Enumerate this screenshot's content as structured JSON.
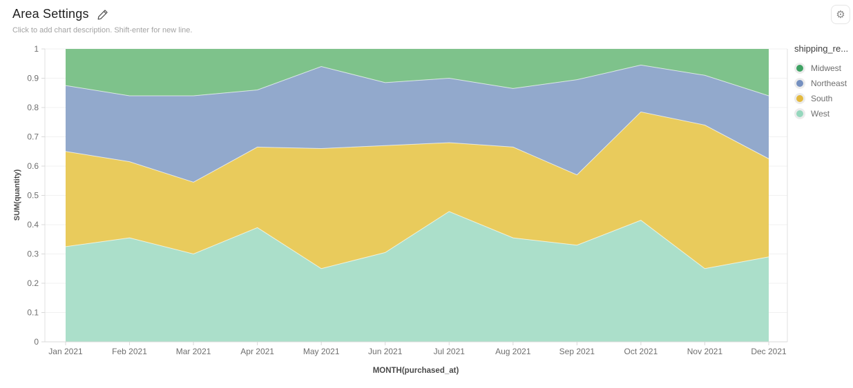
{
  "header": {
    "title": "Area Settings",
    "subtitle": "Click to add chart description. Shift-enter for new line."
  },
  "icons": {
    "settings": "⚙"
  },
  "legend": {
    "title": "shipping_re...",
    "items": [
      {
        "label": "Midwest",
        "color": "#3ea263"
      },
      {
        "label": "Northeast",
        "color": "#7590c0"
      },
      {
        "label": "South",
        "color": "#e3b93e"
      },
      {
        "label": "West",
        "color": "#95d7bd"
      }
    ]
  },
  "chart_data": {
    "type": "area",
    "stacked": true,
    "normalized": true,
    "title": "Area Settings",
    "xlabel": "MONTH(purchased_at)",
    "ylabel": "SUM(quantity)",
    "ylim": [
      0,
      1
    ],
    "yticks": [
      "0",
      "0.1",
      "0.2",
      "0.3",
      "0.4",
      "0.5",
      "0.6",
      "0.7",
      "0.8",
      "0.9",
      "1"
    ],
    "grid": "horizontal",
    "legend_position": "right",
    "stack_order": "West (bottom), South, Northeast, Midwest (top)",
    "x": [
      "Jan 2021",
      "Feb 2021",
      "Mar 2021",
      "Apr 2021",
      "May 2021",
      "Jun 2021",
      "Jul 2021",
      "Aug 2021",
      "Sep 2021",
      "Oct 2021",
      "Nov 2021",
      "Dec 2021"
    ],
    "series": [
      {
        "name": "West",
        "fill": "#abdfca",
        "legend_color": "#95d7bd",
        "values": [
          0.325,
          0.355,
          0.3,
          0.39,
          0.25,
          0.305,
          0.445,
          0.355,
          0.33,
          0.415,
          0.25,
          0.29
        ]
      },
      {
        "name": "South",
        "fill": "#e9cb5c",
        "legend_color": "#e3b93e",
        "values": [
          0.325,
          0.26,
          0.245,
          0.275,
          0.41,
          0.365,
          0.235,
          0.31,
          0.24,
          0.37,
          0.49,
          0.335
        ]
      },
      {
        "name": "Northeast",
        "fill": "#92a9cc",
        "legend_color": "#7590c0",
        "values": [
          0.225,
          0.225,
          0.295,
          0.195,
          0.28,
          0.215,
          0.22,
          0.2,
          0.325,
          0.16,
          0.17,
          0.215
        ]
      },
      {
        "name": "Midwest",
        "fill": "#7ec28b",
        "legend_color": "#3ea263",
        "values": [
          0.125,
          0.16,
          0.16,
          0.14,
          0.06,
          0.115,
          0.1,
          0.135,
          0.105,
          0.055,
          0.09,
          0.16
        ]
      }
    ]
  }
}
